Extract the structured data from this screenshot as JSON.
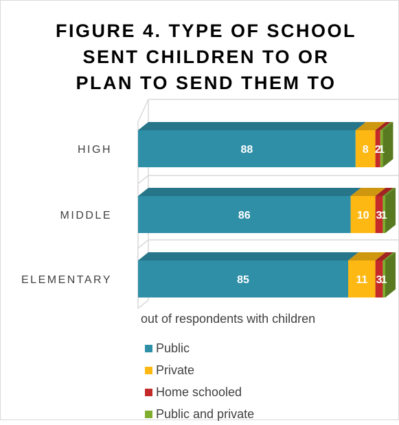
{
  "chart_data": {
    "type": "bar",
    "orientation": "horizontal",
    "stacked": true,
    "style": "3d",
    "title": "FIGURE 4. TYPE OF SCHOOL\nSENT CHILDREN TO OR\nPLAN TO SEND THEM TO",
    "xlabel": "out of respondents with children",
    "categories": [
      "HIGH",
      "MIDDLE",
      "ELEMENTARY"
    ],
    "series": [
      {
        "name": "Public",
        "values": [
          88,
          86,
          85
        ],
        "color": "#2E8FA7"
      },
      {
        "name": "Private",
        "values": [
          8,
          10,
          11
        ],
        "color": "#FDB813"
      },
      {
        "name": "Home schooled",
        "values": [
          2,
          3,
          3
        ],
        "color": "#C42A2A"
      },
      {
        "name": "Public and private",
        "values": [
          1,
          1,
          1
        ],
        "color": "#7FAE2E"
      }
    ],
    "xlim": [
      0,
      100
    ],
    "legend_position": "bottom",
    "grid": true
  }
}
